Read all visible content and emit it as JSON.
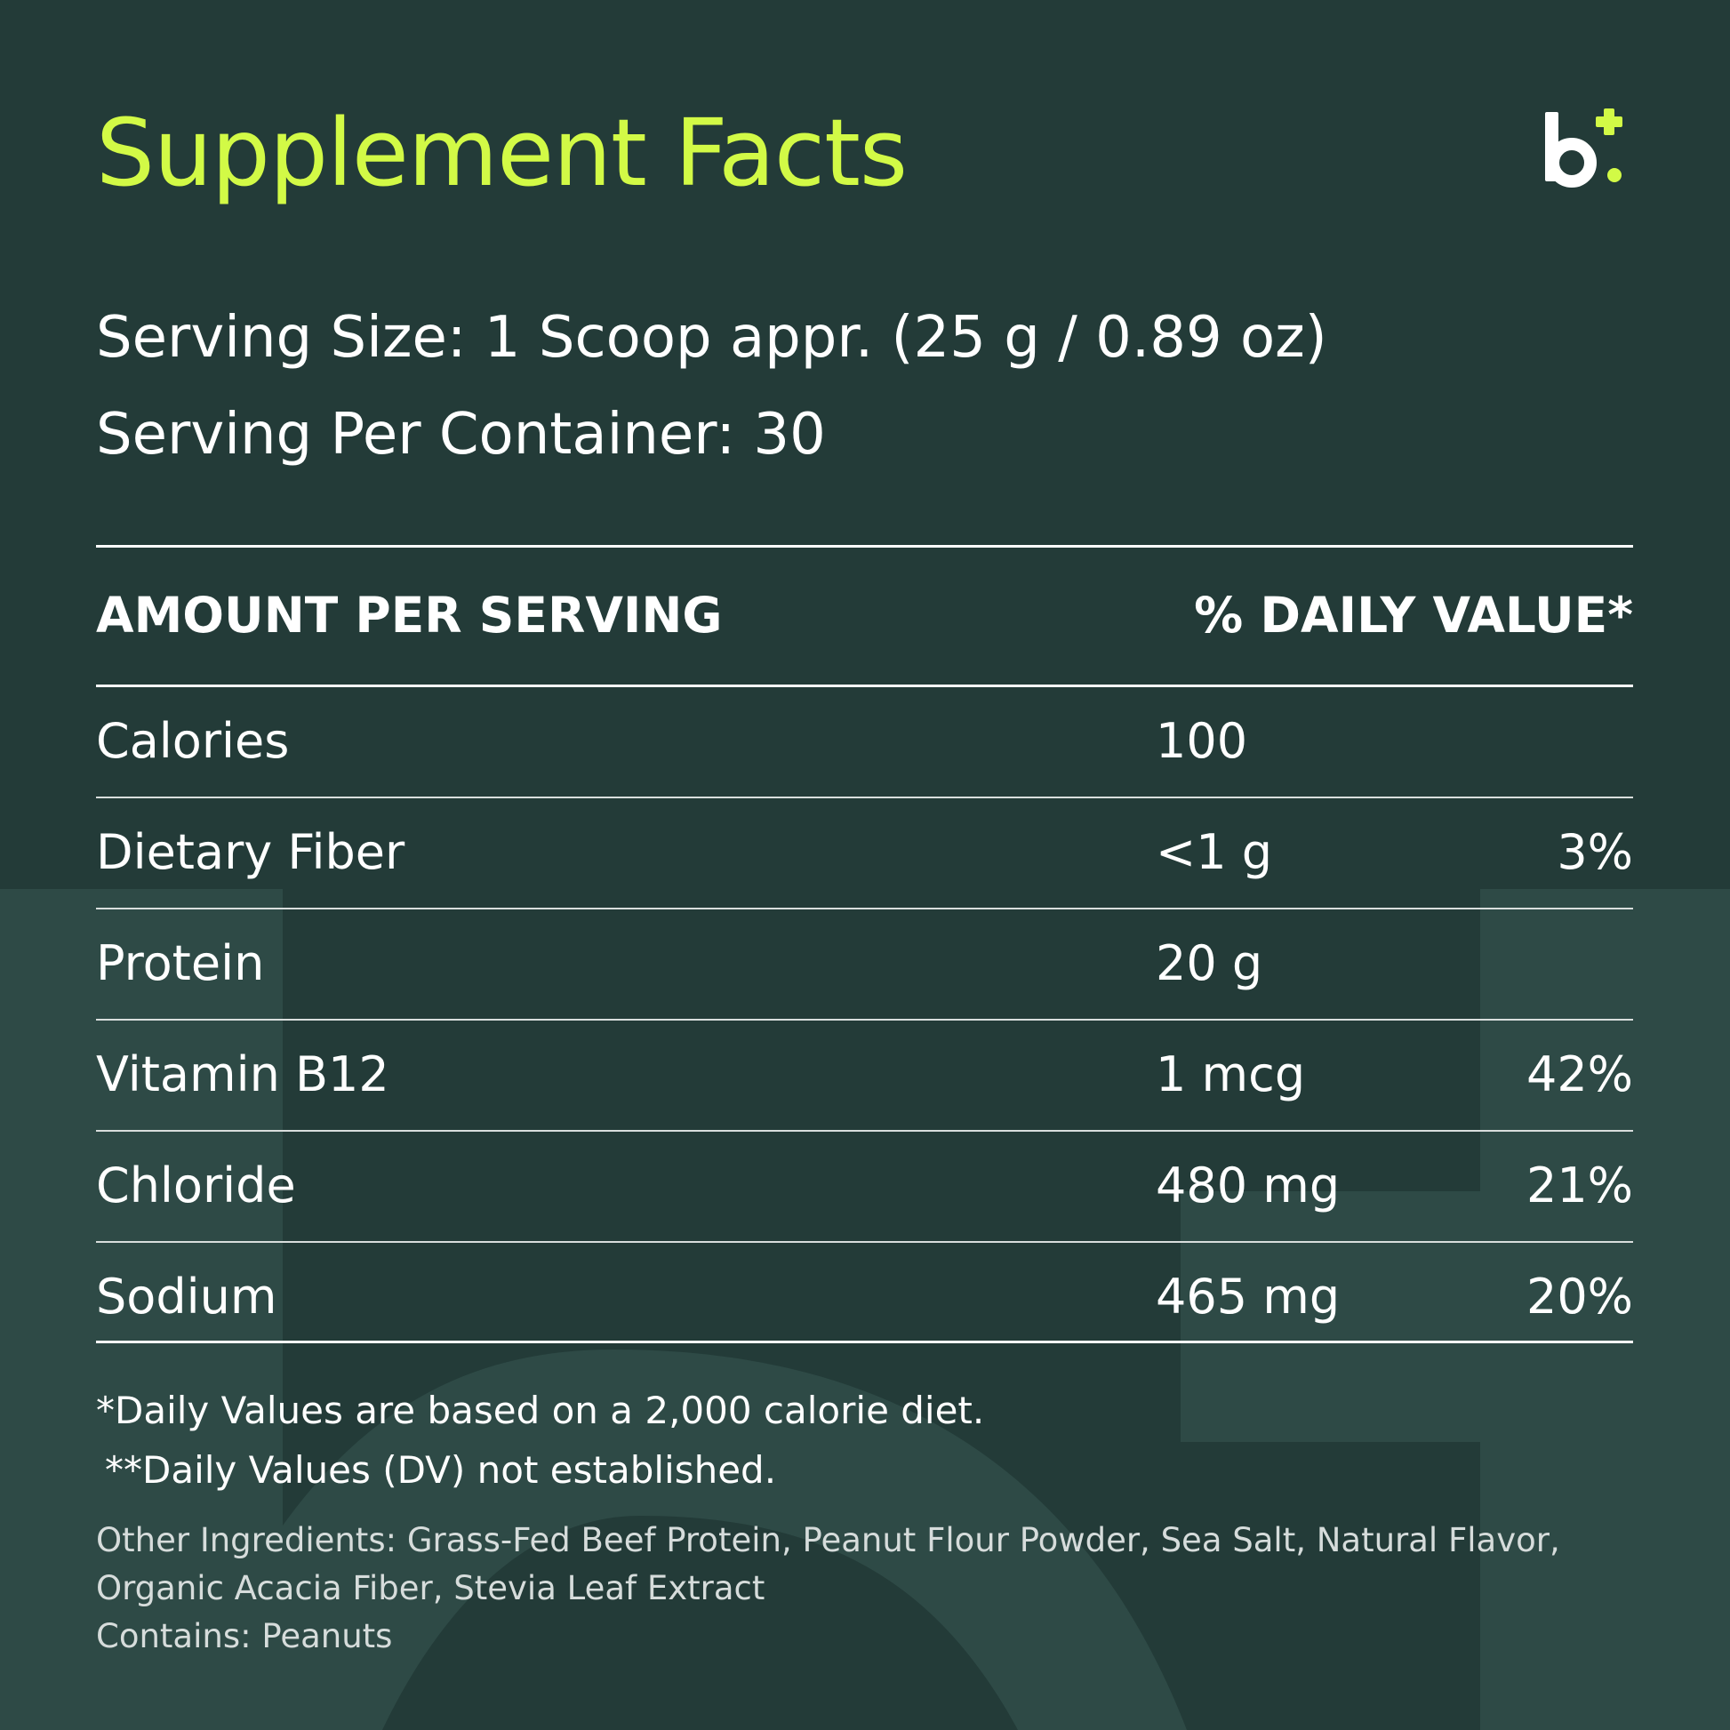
{
  "colors": {
    "background": "#233b38",
    "background_shape": "#2e4a46",
    "accent": "#d2fa46",
    "text": "#ffffff",
    "muted_text": "#d6dcdb"
  },
  "header": {
    "title": "Supplement Facts",
    "logo": {
      "icon": "brand-logo-icon"
    }
  },
  "serving": {
    "size": "Serving Size: 1 Scoop appr. (25 g / 0.89 oz)",
    "per_container": "Serving Per Container: 30"
  },
  "table": {
    "header_amount": "AMOUNT PER SERVING",
    "header_dv": "% DAILY VALUE*",
    "rows": [
      {
        "name": "Calories",
        "amount": "100",
        "dv": ""
      },
      {
        "name": "Dietary Fiber",
        "amount": "<1 g",
        "dv": "3%"
      },
      {
        "name": "Protein",
        "amount": "20 g",
        "dv": ""
      },
      {
        "name": "Vitamin B12",
        "amount": "1 mcg",
        "dv": "42%"
      },
      {
        "name": "Chloride",
        "amount": "480 mg",
        "dv": "21%"
      },
      {
        "name": "Sodium",
        "amount": "465 mg",
        "dv": "20%"
      }
    ]
  },
  "footnotes": {
    "daily_values": "*Daily Values are based on a 2,000 calorie diet.",
    "not_established": "**Daily Values (DV) not established."
  },
  "ingredients": {
    "line1": "Other Ingredients: Grass-Fed Beef Protein, Peanut Flour Powder, Sea Salt, Natural Flavor,",
    "line2": "Organic Acacia Fiber, Stevia Leaf Extract",
    "contains": "Contains: Peanuts"
  }
}
